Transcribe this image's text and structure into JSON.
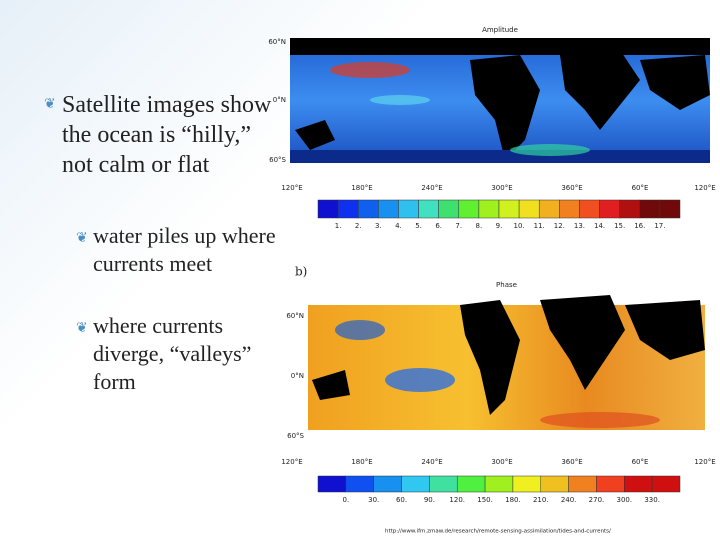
{
  "bullets": [
    {
      "text": "Satellite images show the ocean is “hilly,” not calm or flat",
      "level": 1
    },
    {
      "text": "water piles up where currents meet",
      "level": 2
    },
    {
      "text": "where currents diverge, “valleys” form",
      "level": 2
    }
  ],
  "figures": [
    {
      "title": "Amplitude",
      "y_labels": [
        "60°N",
        "0°N",
        "60°S"
      ],
      "x_labels": [
        "120°E",
        "180°E",
        "240°E",
        "300°E",
        "360°E",
        "60°E",
        "120°E"
      ],
      "colorbar_labels": [
        "1.",
        "2.",
        "3.",
        "4.",
        "5.",
        "6.",
        "7.",
        "8.",
        "9.",
        "10.",
        "11.",
        "12.",
        "13.",
        "14.",
        "15.",
        "16.",
        "17."
      ]
    },
    {
      "label": "b)",
      "title": "Phase",
      "y_labels": [
        "60°N",
        "0°N",
        "60°S"
      ],
      "x_labels": [
        "120°E",
        "180°E",
        "240°E",
        "300°E",
        "360°E",
        "60°E",
        "120°E"
      ],
      "colorbar_labels": [
        "0.",
        "30.",
        "60.",
        "90.",
        "120.",
        "150.",
        "180.",
        "210.",
        "240.",
        "270.",
        "300.",
        "330."
      ]
    }
  ],
  "source": "http://www.ifm.zmaw.de/research/remote-sensing-assimilation/tides-and-currents/"
}
